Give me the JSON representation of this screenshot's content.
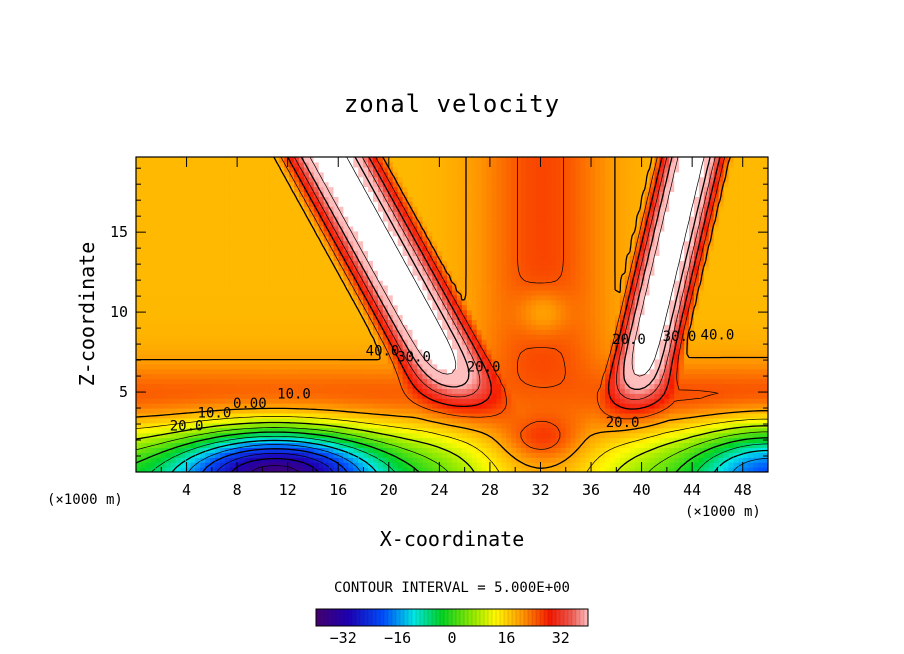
{
  "chart_data": {
    "type": "contour",
    "title": "zonal velocity",
    "xlabel": "X-coordinate",
    "ylabel": "Z-coordinate",
    "x_unit": "(×1000 m)",
    "z_unit": "(×1000 m)",
    "xlim": [
      0,
      50
    ],
    "zlim": [
      0,
      19.7
    ],
    "x_ticks": [
      4,
      8,
      12,
      16,
      20,
      24,
      28,
      32,
      36,
      40,
      44,
      48
    ],
    "z_ticks": [
      5,
      10,
      15
    ],
    "contour_interval_text": "CONTOUR INTERVAL = 5.000E+00",
    "contour_interval": 5.0,
    "contour_labels": [
      {
        "text": "40.0",
        "x": 19.5,
        "z": 7.3
      },
      {
        "text": "30.0",
        "x": 22.0,
        "z": 6.9
      },
      {
        "text": "20.0",
        "x": 27.5,
        "z": 6.3
      },
      {
        "text": "10.0",
        "x": 12.5,
        "z": 4.6
      },
      {
        "text": "0.00",
        "x": 9.0,
        "z": 4.0
      },
      {
        "text": "10.0",
        "x": 6.2,
        "z": 3.4
      },
      {
        "text": "20.0",
        "x": 4.0,
        "z": 2.6
      },
      {
        "text": "20.0",
        "x": 39.0,
        "z": 8.0
      },
      {
        "text": "30.0",
        "x": 43.0,
        "z": 8.2
      },
      {
        "text": "40.0",
        "x": 46.0,
        "z": 8.3
      },
      {
        "text": "20.0",
        "x": 38.5,
        "z": 2.8
      }
    ],
    "colorbar": {
      "range": [
        -40,
        40
      ],
      "ticks": [
        -32,
        -16,
        0,
        16,
        32
      ]
    },
    "field_features": [
      {
        "feature": "strong westerly jet aloft, west",
        "value_max": 45
      },
      {
        "feature": "strong westerly jet aloft, east",
        "value_max": 45
      },
      {
        "feature": "easterly core near surface",
        "value_min": -35,
        "x": 12,
        "z": 1
      },
      {
        "feature": "local maximum near surface",
        "value_max": 30,
        "x": 32,
        "z": 2
      },
      {
        "feature": "weak column minimum",
        "value_min": 15,
        "x": 32,
        "z": 9.8
      }
    ]
  }
}
